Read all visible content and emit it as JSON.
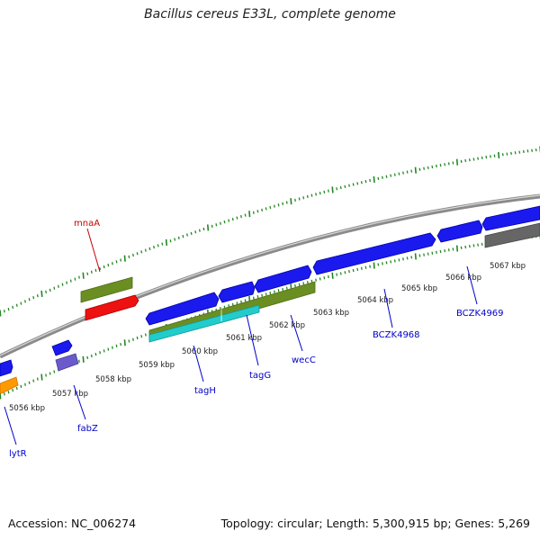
{
  "title": "Bacillus cereus E33L, complete genome",
  "footer": {
    "accession": "Accession: NC_006274",
    "topology": "Topology: circular; Length: 5,300,915 bp; Genes: 5,269"
  },
  "kbp_labels": [
    "5056 kbp",
    "5057 kbp",
    "5058 kbp",
    "5059 kbp",
    "5060 kbp",
    "5061 kbp",
    "5062 kbp",
    "5063 kbp",
    "5064 kbp",
    "5065 kbp",
    "5066 kbp",
    "5067 kbp"
  ],
  "gene_labels": {
    "mnaA": "mnaA",
    "lytR": "lytR",
    "fabZ": "fabZ",
    "tagH": "tagH",
    "tagG": "tagG",
    "wecC": "wecC",
    "BCZK4968": "BCZK4968",
    "BCZK4969": "BCZK4969"
  },
  "colors": {
    "forward_cds": "#1a1aee",
    "olive": "#6b8e23",
    "red": "#ee1111",
    "cyan": "#22cccc",
    "gray": "#666666",
    "orange": "#ff9900",
    "purple": "#6a5acd",
    "tick": "#228822"
  }
}
